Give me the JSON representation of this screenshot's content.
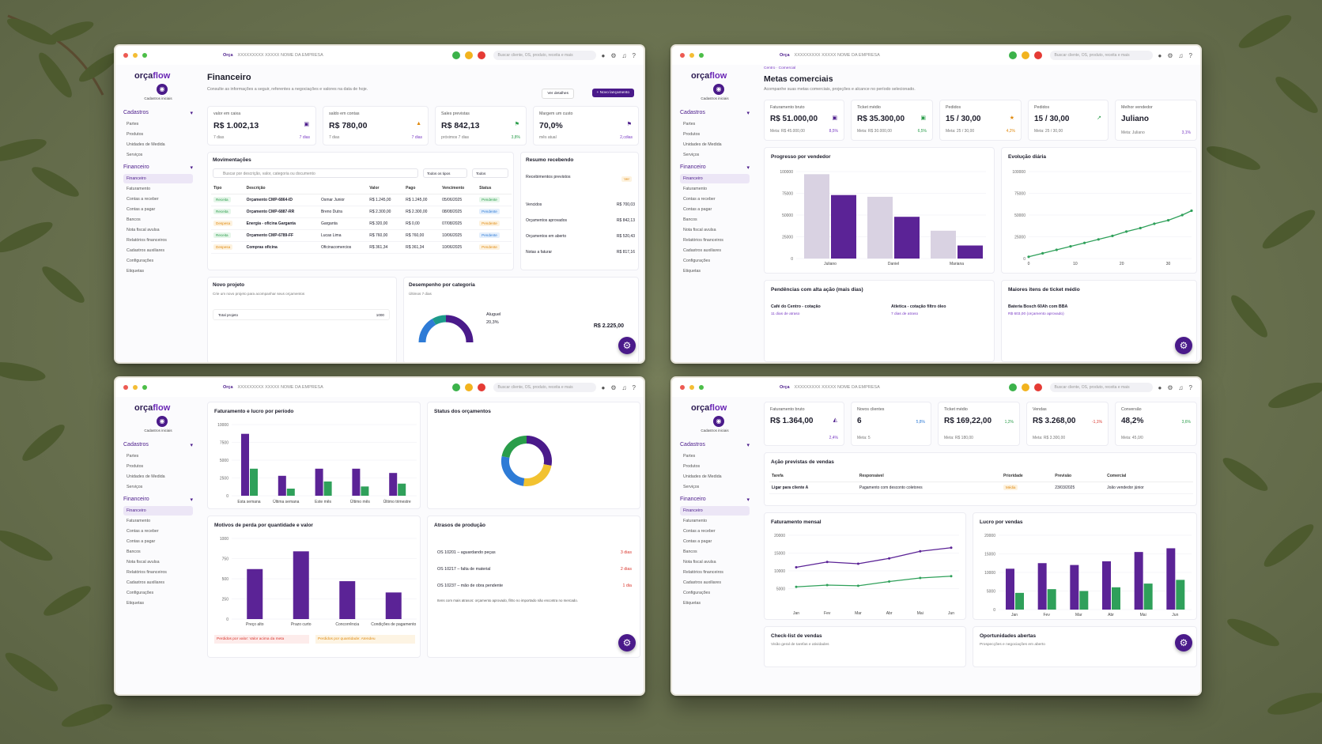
{
  "common": {
    "brand": "Orça",
    "brand2": "flow",
    "crumb": "XXXXXXXXX XXXXX NOME DA EMPRESA",
    "search": "Buscar cliente, OS, produto, receita e mais",
    "cadastros_iniciais": "Cadastros iniciais",
    "logo": "orça",
    "logo2": "flow"
  },
  "sidebar": {
    "cadastros": "Cadastros",
    "cad_items": [
      "Partes",
      "Produtos",
      "Unidades de Medida",
      "Serviços"
    ],
    "financeiro": "Financeiro",
    "fin_items": [
      "Financeiro",
      "Faturamento",
      "Contas a receber",
      "Contas a pagar",
      "Bancos",
      "Nota fiscal avulsa",
      "Relatórios financeiros",
      "Cadastros auxiliares",
      "Configurações",
      "Etiquetas"
    ]
  },
  "w1": {
    "title": "Financeiro",
    "subtitle": "Consulte as informações a seguir, referentes a negociações e valores na data de hoje.",
    "btn_details": "Ver detalhes",
    "btn_new": "+ Novo lançamento",
    "kpis": [
      {
        "label": "valor em caixa",
        "value": "R$ 1.002,13",
        "sub": "7 dias",
        "pct": "7 dias"
      },
      {
        "label": "saldo em contas",
        "value": "R$ 780,00",
        "sub": "7 dias",
        "pct": "7 dias"
      },
      {
        "label": "Sales previstas",
        "value": "R$ 842,13",
        "sub": "próximos 7 dias",
        "pct": "3,8%"
      },
      {
        "label": "Margem um custo",
        "value": "70,0%",
        "sub": "mês atual",
        "pct": "2,cdias"
      }
    ],
    "mov_title": "Movimentações",
    "mov_search": "Buscar por descrição, valor, categoria ou documento",
    "filter1": "Todos os tipos",
    "filter2": "Todos",
    "cols": [
      "Tipo",
      "Descrição",
      "Valor",
      "Pago",
      "Vencimento",
      "Status"
    ],
    "rows": [
      [
        "Receita",
        "Orçamento CMP-6864-ID",
        "Osmar Junior",
        "R$ 1.245,00",
        "R$ 1.245,00",
        "05/06/2025",
        "Pendente"
      ],
      [
        "Receita",
        "Orçamento CMP-6887-RR",
        "Breno Dutra",
        "R$ 2.300,00",
        "R$ 2.300,00",
        "08/08/2025",
        "Pendente"
      ],
      [
        "Despesa",
        "Energia - oficina Garganta",
        "Garganta",
        "R$ 320,00",
        "R$ 0,00",
        "07/08/2025",
        "Pendente"
      ],
      [
        "Receita",
        "Orçamento CMP-6789-FF",
        "Lucas Lima",
        "R$ 760,00",
        "R$ 760,00",
        "10/06/2025",
        "Pendente"
      ],
      [
        "Despesa",
        "Compras oficina",
        "Oficinacomercios",
        "R$ 361,34",
        "R$ 361,34",
        "10/06/2025",
        "Pendente"
      ]
    ],
    "res_title": "Resumo recebendo",
    "res_head": "Recebimentos previstos",
    "res_ver": "Ver",
    "res_rows": [
      [
        "Vencidos",
        "R$ 700,03"
      ],
      [
        "Orçamentos aprovados",
        "R$ 842,13"
      ],
      [
        "Orçamentos em aberto",
        "R$ 520,43"
      ],
      [
        "Notas a faturar",
        "R$ 817,16"
      ]
    ],
    "np_title": "Novo projeto",
    "np_sub": "Crie um novo projeto para acompanhar seus orçamentos",
    "np_label": "Total projeto",
    "np_val": "1000",
    "dc_title": "Desempenho por categoria",
    "dc_sub": "Últimos 7 dias",
    "dc_label": "Aluguel",
    "dc_pct": "20,3%",
    "dc_val": "R$ 2.225,00"
  },
  "w2": {
    "crumb": "Centro · Comercial",
    "title": "Metas comerciais",
    "subtitle": "Acompanhe suas metas comerciais, projeções e alcance no período selecionado.",
    "kpis": [
      {
        "label": "Faturamento bruto",
        "value": "R$ 51.000,00",
        "sub": "Meta: R$ 45.000,00",
        "pct": "8,5%"
      },
      {
        "label": "Ticket médio",
        "value": "R$ 35.300,00",
        "sub": "Meta: R$ 30.000,00",
        "pct": "6,5%"
      },
      {
        "label": "Pedidos",
        "value": "15 / 30,00",
        "sub": "Meta: 25 / 30,00",
        "pct": "4,2%"
      },
      {
        "label": "Pedidos",
        "value": "15 / 30,00",
        "sub": "Meta: 25 / 30,00",
        "pct": ""
      },
      {
        "label": "Melhor vendedor",
        "value": "Juliano",
        "sub": "Meta: Juliano",
        "pct": "3,1%"
      }
    ],
    "pv_title": "Progresso por vendedor",
    "ed_title": "Evolução diária",
    "pend_title": "Pendências com alta ação (mais dias)",
    "pend": [
      {
        "t": "Café do Centro - cotação",
        "s": "11 dias de atraso"
      },
      {
        "t": "Atletica - cotação filtro óleo",
        "s": "7 dias de atraso"
      }
    ],
    "mt_title": "Maiores itens de ticket médio",
    "mt_item": "Bateria Bosch 60Ah com BBA",
    "mt_sub": "R$ 603,00 (orçamento aprovado)"
  },
  "w3": {
    "fl_title": "Faturamento e lucro por período",
    "so_title": "Status dos orçamentos",
    "mp_title": "Motivos de perda por quantidade e valor",
    "ap_title": "Atrasos de produção",
    "ap_rows": [
      [
        "OS 10201 – aguardando peças",
        "3 dias"
      ],
      [
        "OS 10217 – falta de material",
        "2 dias"
      ],
      [
        "OS 10237 – mão de obra pendente",
        "1 dia"
      ]
    ],
    "ap_note": "Itens com mais atrasos: orçamento aprovado, filtro no importado não encontra no mercado.",
    "mp_foot1": "Perdidos por valor: Valor acima da meta",
    "mp_foot2": "Perdidos por quantidade: Atendeu"
  },
  "w4": {
    "kpis": [
      {
        "label": "Faturamento bruto",
        "value": "R$ 1.364,00",
        "sub": "",
        "pct": "2,4%"
      },
      {
        "label": "Novos clientes",
        "value": "6",
        "sub": "Meta: 5",
        "pct": "5,8%"
      },
      {
        "label": "Ticket médio",
        "value": "R$ 169,22,00",
        "sub": "Meta: R$ 180,00",
        "pct": "1,2%"
      },
      {
        "label": "Vendas",
        "value": "R$ 3.268,00",
        "sub": "Meta: R$ 3.300,00",
        "pct": "-1,1%"
      },
      {
        "label": "Conversão",
        "value": "48,2%",
        "sub": "Meta: 45,0/0",
        "pct": "3,6%"
      }
    ],
    "ap_title": "Ação previstas de vendas",
    "cols": [
      "Tarefa",
      "Responsável",
      "Prioridade",
      "Previsão",
      "Comercial"
    ],
    "row": [
      "Ligar para cliente A",
      "Pagamento com desconto coletores",
      "Média",
      "23/03/2025",
      "João vendedor júnior"
    ],
    "fm_title": "Faturamento mensal",
    "lv_title": "Lucro por vendas",
    "ck_title": "Check-list de vendas",
    "ck_sub": "Visão geral de tarefas e atividades",
    "op_title": "Oportunidades abertas",
    "op_sub": "Prospecções e negociações em aberto"
  },
  "chart_data": [
    {
      "type": "bar",
      "title": "Progresso por vendedor",
      "categories": [
        "Juliano",
        "Daniel",
        "Mariana"
      ],
      "series": [
        {
          "values": [
            97000,
            71000,
            32000
          ]
        },
        {
          "values": [
            73000,
            48000,
            15000
          ]
        }
      ],
      "ylim": [
        0,
        100000
      ],
      "yticks": [
        0,
        25000,
        50000,
        75000,
        100000
      ]
    },
    {
      "type": "line",
      "title": "Evolução diária",
      "x": [
        0,
        3,
        6,
        9,
        12,
        15,
        18,
        21,
        24,
        27,
        30,
        33,
        35
      ],
      "values": [
        2000,
        6000,
        10000,
        14000,
        18000,
        22000,
        26000,
        31000,
        35000,
        40000,
        44000,
        50000,
        55000
      ],
      "xlim": [
        0,
        35
      ],
      "ylim": [
        0,
        100000
      ],
      "xticks": [
        0,
        10,
        20,
        30
      ],
      "yticks": [
        0,
        25000,
        50000,
        75000,
        100000
      ]
    },
    {
      "type": "bar",
      "title": "Faturamento e lucro por período",
      "categories": [
        "Esta semana",
        "Última semana",
        "Este mês",
        "Último mês",
        "Último trimestre"
      ],
      "series": [
        {
          "values": [
            8700,
            2800,
            3800,
            3800,
            3200
          ]
        },
        {
          "values": [
            3800,
            1000,
            2000,
            1300,
            1700
          ]
        }
      ],
      "ylim": [
        0,
        10000
      ],
      "yticks": [
        0,
        2500,
        5000,
        7500,
        10000
      ]
    },
    {
      "type": "pie",
      "title": "Status dos orçamentos",
      "values": [
        28,
        24,
        26,
        22
      ],
      "colors": [
        "#4a1a8a",
        "#f2c230",
        "#2e7bd6",
        "#2a9d4a"
      ]
    },
    {
      "type": "bar",
      "title": "Motivos de perda por quantidade e valor",
      "categories": [
        "Preço alto",
        "Prazo curto",
        "Concorrência",
        "Condições de pagamento"
      ],
      "values": [
        620,
        840,
        470,
        330
      ],
      "ylim": [
        0,
        1000
      ],
      "yticks": [
        0,
        250,
        500,
        750,
        1000
      ]
    },
    {
      "type": "line",
      "title": "Faturamento mensal",
      "categories": [
        "Jan",
        "Fev",
        "Mar",
        "Abr",
        "Mai",
        "Jun"
      ],
      "series": [
        {
          "values": [
            11000,
            12500,
            12000,
            13500,
            15500,
            16500
          ]
        },
        {
          "values": [
            5500,
            6000,
            5800,
            7000,
            8000,
            8500
          ]
        }
      ],
      "ylim": [
        0,
        20000
      ],
      "yticks": [
        5000,
        10000,
        15000,
        20000
      ]
    },
    {
      "type": "bar",
      "title": "Lucro por vendas",
      "categories": [
        "Jan",
        "Fev",
        "Mar",
        "Abr",
        "Mai",
        "Jun"
      ],
      "series": [
        {
          "values": [
            11000,
            12500,
            12000,
            13000,
            15500,
            16500
          ]
        },
        {
          "values": [
            4500,
            5500,
            5000,
            6000,
            7000,
            8000
          ]
        }
      ],
      "ylim": [
        0,
        20000
      ],
      "yticks": [
        0,
        5000,
        10000,
        15000,
        20000
      ]
    }
  ]
}
